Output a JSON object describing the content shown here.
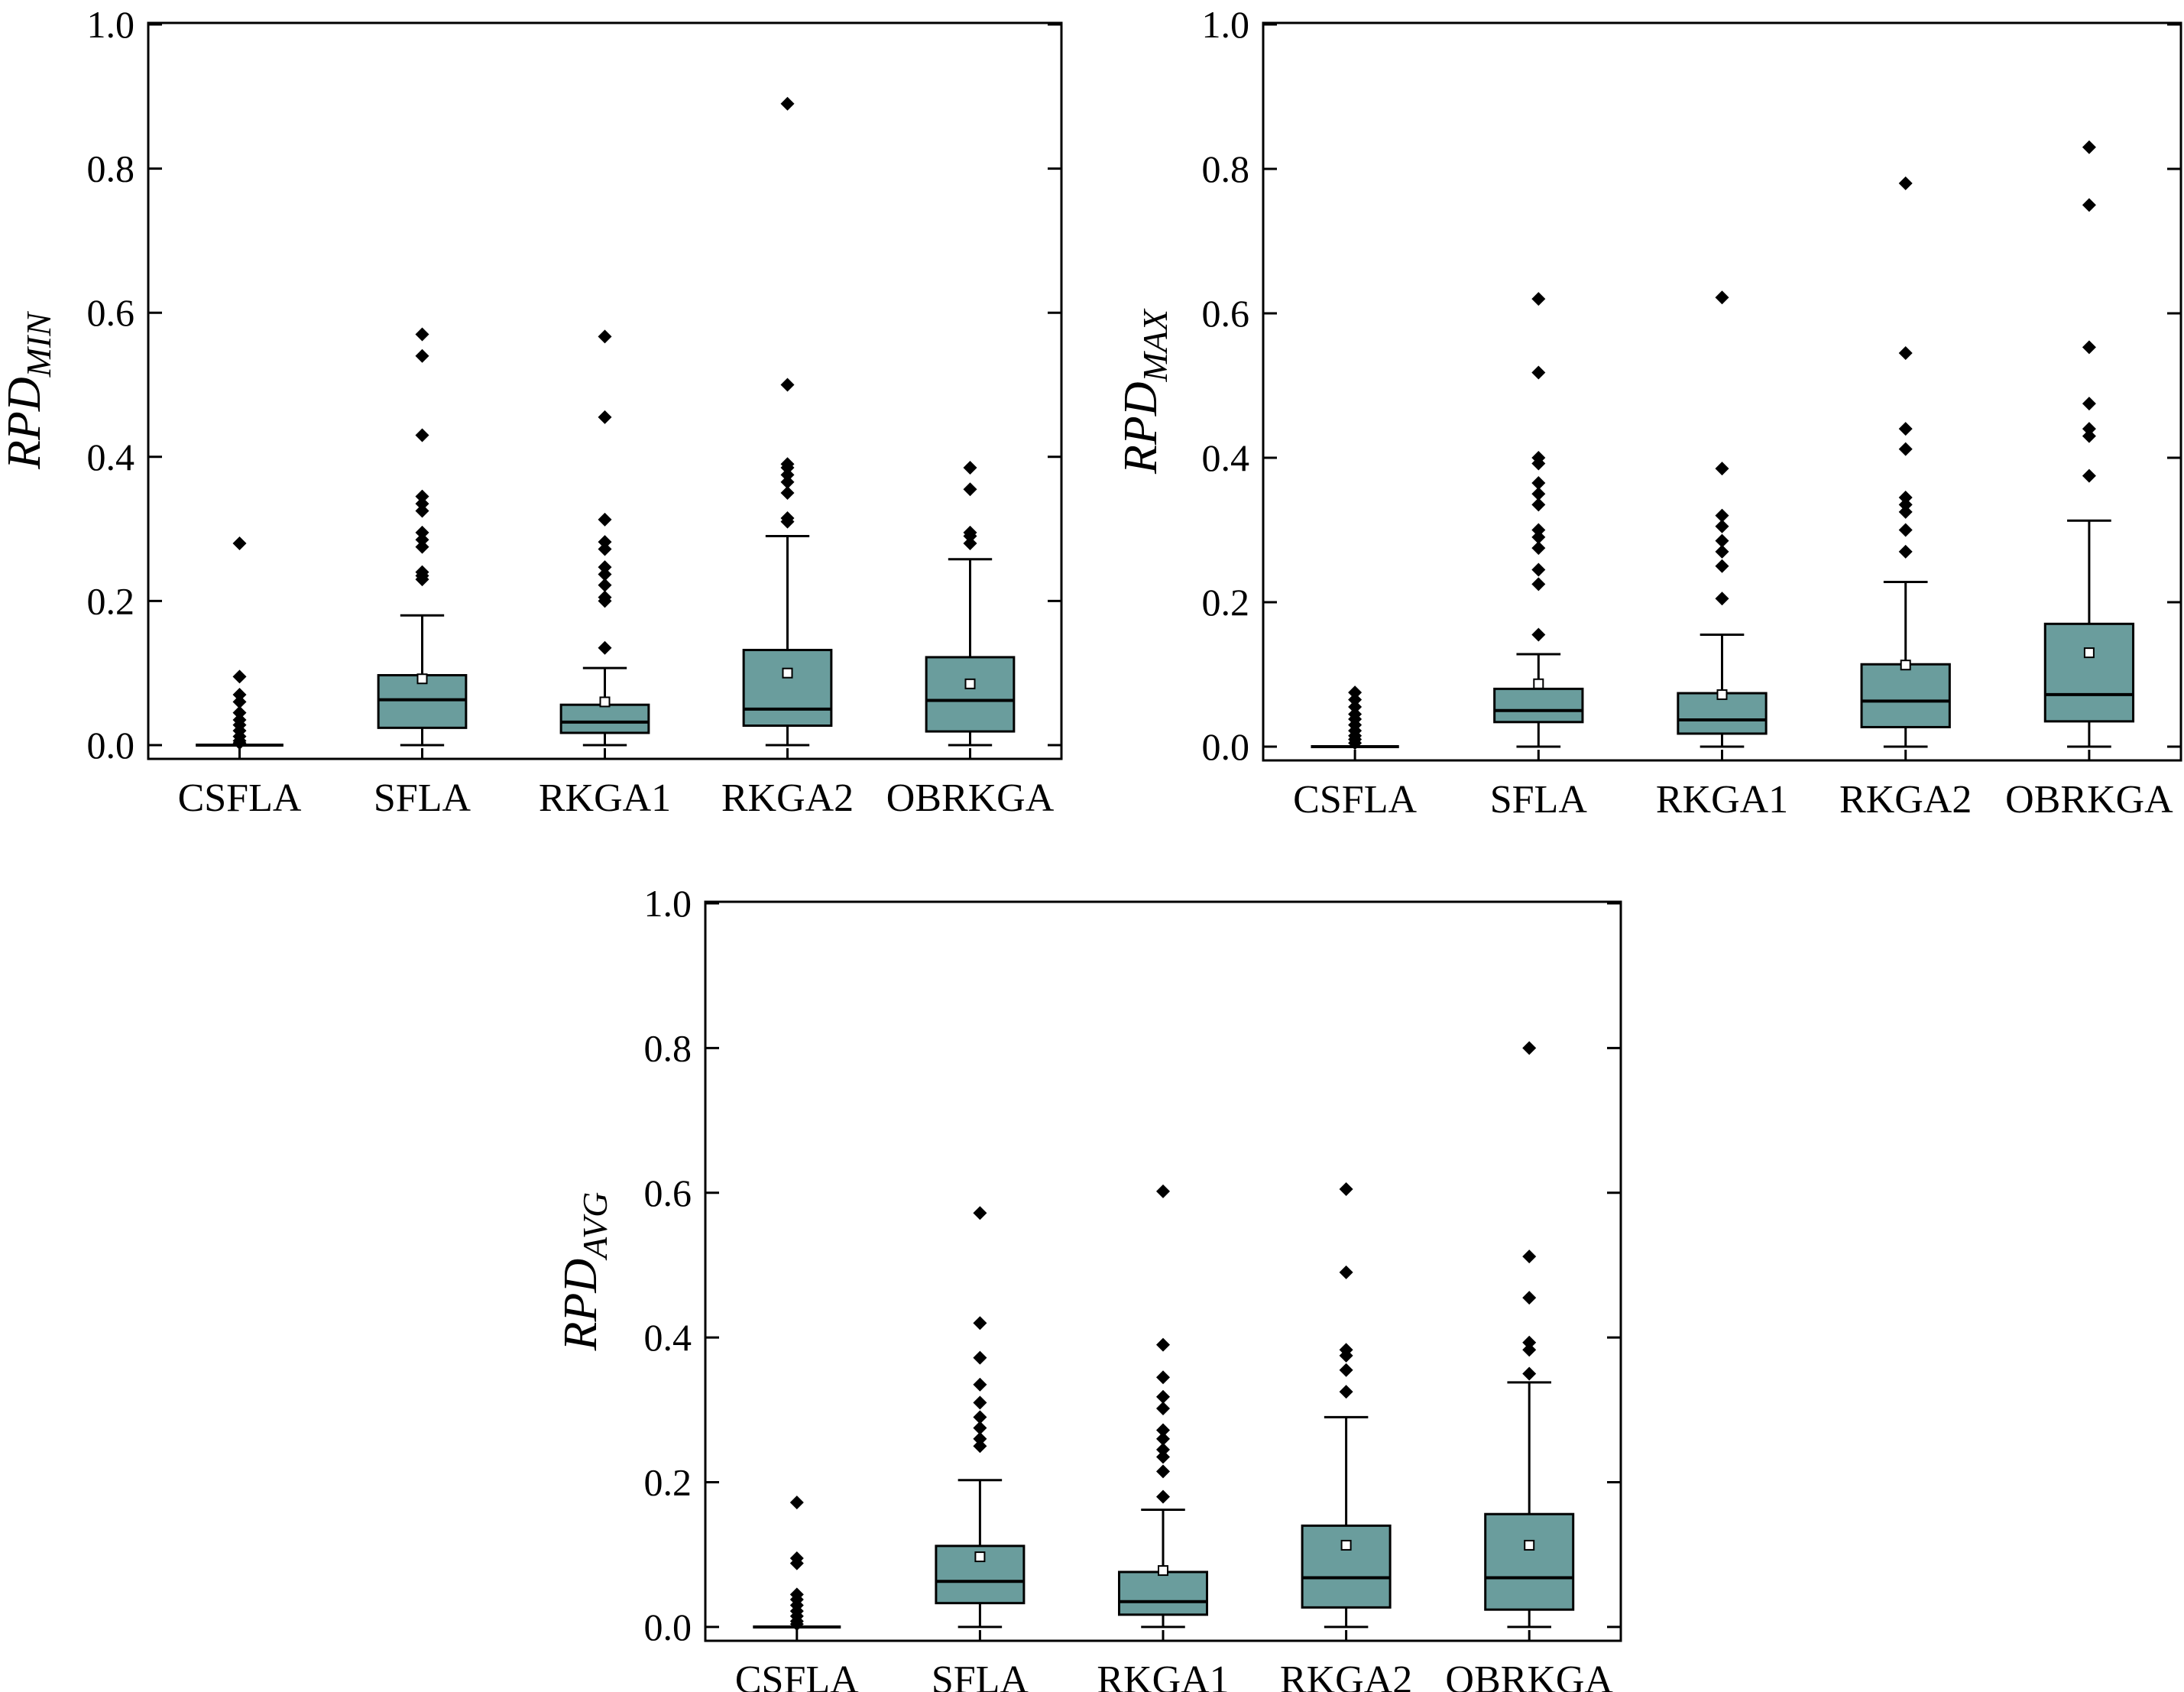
{
  "chart_data": [
    {
      "type": "box",
      "ylabel_base": "RPD",
      "ylabel_sub": "MIN",
      "ylim": [
        0.0,
        1.0
      ],
      "yticks": [
        "0.0",
        "0.2",
        "0.4",
        "0.6",
        "0.8",
        "1.0"
      ],
      "categories": [
        "CSFLA",
        "SFLA",
        "RKGA1",
        "RKGA2",
        "OBRKGA"
      ],
      "boxes": [
        {
          "name": "CSFLA",
          "q1": 0.0,
          "median": 0.0,
          "q3": 0.0,
          "whisker_low": 0.0,
          "whisker_high": 0.0,
          "mean": 0.0,
          "outliers": [
            0.28,
            0.095,
            0.07,
            0.06,
            0.045,
            0.035,
            0.028,
            0.02,
            0.012,
            0.006,
            0.003
          ]
        },
        {
          "name": "SFLA",
          "q1": 0.024,
          "median": 0.063,
          "q3": 0.097,
          "whisker_low": 0.0,
          "whisker_high": 0.18,
          "mean": 0.092,
          "outliers": [
            0.57,
            0.54,
            0.43,
            0.345,
            0.335,
            0.325,
            0.295,
            0.285,
            0.275,
            0.24,
            0.235,
            0.23
          ]
        },
        {
          "name": "RKGA1",
          "q1": 0.017,
          "median": 0.032,
          "q3": 0.056,
          "whisker_low": 0.0,
          "whisker_high": 0.107,
          "mean": 0.06,
          "outliers": [
            0.567,
            0.455,
            0.313,
            0.282,
            0.272,
            0.247,
            0.237,
            0.222,
            0.205,
            0.2,
            0.135
          ]
        },
        {
          "name": "RKGA2",
          "q1": 0.027,
          "median": 0.05,
          "q3": 0.132,
          "whisker_low": 0.0,
          "whisker_high": 0.29,
          "mean": 0.1,
          "outliers": [
            0.89,
            0.5,
            0.39,
            0.385,
            0.375,
            0.365,
            0.35,
            0.315,
            0.31
          ]
        },
        {
          "name": "OBRKGA",
          "q1": 0.019,
          "median": 0.062,
          "q3": 0.122,
          "whisker_low": 0.0,
          "whisker_high": 0.258,
          "mean": 0.085,
          "outliers": [
            0.385,
            0.355,
            0.295,
            0.29,
            0.28
          ]
        }
      ]
    },
    {
      "type": "box",
      "ylabel_base": "RPD",
      "ylabel_sub": "MAX",
      "ylim": [
        0.0,
        1.0
      ],
      "yticks": [
        "0.0",
        "0.2",
        "0.4",
        "0.6",
        "0.8",
        "1.0"
      ],
      "categories": [
        "CSFLA",
        "SFLA",
        "RKGA1",
        "RKGA2",
        "OBRKGA"
      ],
      "boxes": [
        {
          "name": "CSFLA",
          "q1": 0.0,
          "median": 0.0,
          "q3": 0.0,
          "whisker_low": 0.0,
          "whisker_high": 0.0,
          "mean": 0.0,
          "outliers": [
            0.075,
            0.065,
            0.055,
            0.045,
            0.038,
            0.03,
            0.022,
            0.015,
            0.01,
            0.005
          ]
        },
        {
          "name": "SFLA",
          "q1": 0.034,
          "median": 0.05,
          "q3": 0.08,
          "whisker_low": 0.0,
          "whisker_high": 0.128,
          "mean": 0.087,
          "outliers": [
            0.62,
            0.518,
            0.4,
            0.392,
            0.365,
            0.35,
            0.335,
            0.3,
            0.29,
            0.275,
            0.245,
            0.225,
            0.155
          ]
        },
        {
          "name": "RKGA1",
          "q1": 0.018,
          "median": 0.037,
          "q3": 0.074,
          "whisker_low": 0.0,
          "whisker_high": 0.155,
          "mean": 0.072,
          "outliers": [
            0.622,
            0.385,
            0.32,
            0.305,
            0.285,
            0.27,
            0.25,
            0.205
          ]
        },
        {
          "name": "RKGA2",
          "q1": 0.027,
          "median": 0.063,
          "q3": 0.114,
          "whisker_low": 0.0,
          "whisker_high": 0.228,
          "mean": 0.113,
          "outliers": [
            0.78,
            0.545,
            0.44,
            0.412,
            0.345,
            0.335,
            0.325,
            0.3,
            0.27
          ]
        },
        {
          "name": "OBRKGA",
          "q1": 0.035,
          "median": 0.072,
          "q3": 0.17,
          "whisker_low": 0.0,
          "whisker_high": 0.313,
          "mean": 0.13,
          "outliers": [
            0.83,
            0.75,
            0.553,
            0.475,
            0.44,
            0.43,
            0.375
          ]
        }
      ]
    },
    {
      "type": "box",
      "ylabel_base": "RPD",
      "ylabel_sub": "AVG",
      "ylim": [
        0.0,
        1.0
      ],
      "yticks": [
        "0.0",
        "0.2",
        "0.4",
        "0.6",
        "0.8",
        "1.0"
      ],
      "categories": [
        "CSFLA",
        "SFLA",
        "RKGA1",
        "RKGA2",
        "OBRKGA"
      ],
      "boxes": [
        {
          "name": "CSFLA",
          "q1": 0.0,
          "median": 0.0,
          "q3": 0.0,
          "whisker_low": 0.0,
          "whisker_high": 0.0,
          "mean": 0.0,
          "outliers": [
            0.172,
            0.095,
            0.088,
            0.045,
            0.038,
            0.03,
            0.022,
            0.015,
            0.008,
            0.004
          ]
        },
        {
          "name": "SFLA",
          "q1": 0.033,
          "median": 0.063,
          "q3": 0.112,
          "whisker_low": 0.0,
          "whisker_high": 0.203,
          "mean": 0.097,
          "outliers": [
            0.572,
            0.42,
            0.372,
            0.335,
            0.31,
            0.29,
            0.275,
            0.26,
            0.25
          ]
        },
        {
          "name": "RKGA1",
          "q1": 0.017,
          "median": 0.035,
          "q3": 0.076,
          "whisker_low": 0.0,
          "whisker_high": 0.162,
          "mean": 0.078,
          "outliers": [
            0.602,
            0.39,
            0.345,
            0.318,
            0.302,
            0.272,
            0.26,
            0.245,
            0.235,
            0.215,
            0.18
          ]
        },
        {
          "name": "RKGA2",
          "q1": 0.027,
          "median": 0.068,
          "q3": 0.14,
          "whisker_low": 0.0,
          "whisker_high": 0.29,
          "mean": 0.113,
          "outliers": [
            0.605,
            0.49,
            0.383,
            0.375,
            0.355,
            0.325
          ]
        },
        {
          "name": "OBRKGA",
          "q1": 0.024,
          "median": 0.068,
          "q3": 0.156,
          "whisker_low": 0.0,
          "whisker_high": 0.338,
          "mean": 0.113,
          "outliers": [
            0.8,
            0.512,
            0.455,
            0.393,
            0.383,
            0.35
          ]
        }
      ]
    }
  ],
  "colors": {
    "box_fill": "#6a9d9d",
    "stroke": "#000000",
    "outlier": "#000000",
    "background": "#ffffff"
  }
}
